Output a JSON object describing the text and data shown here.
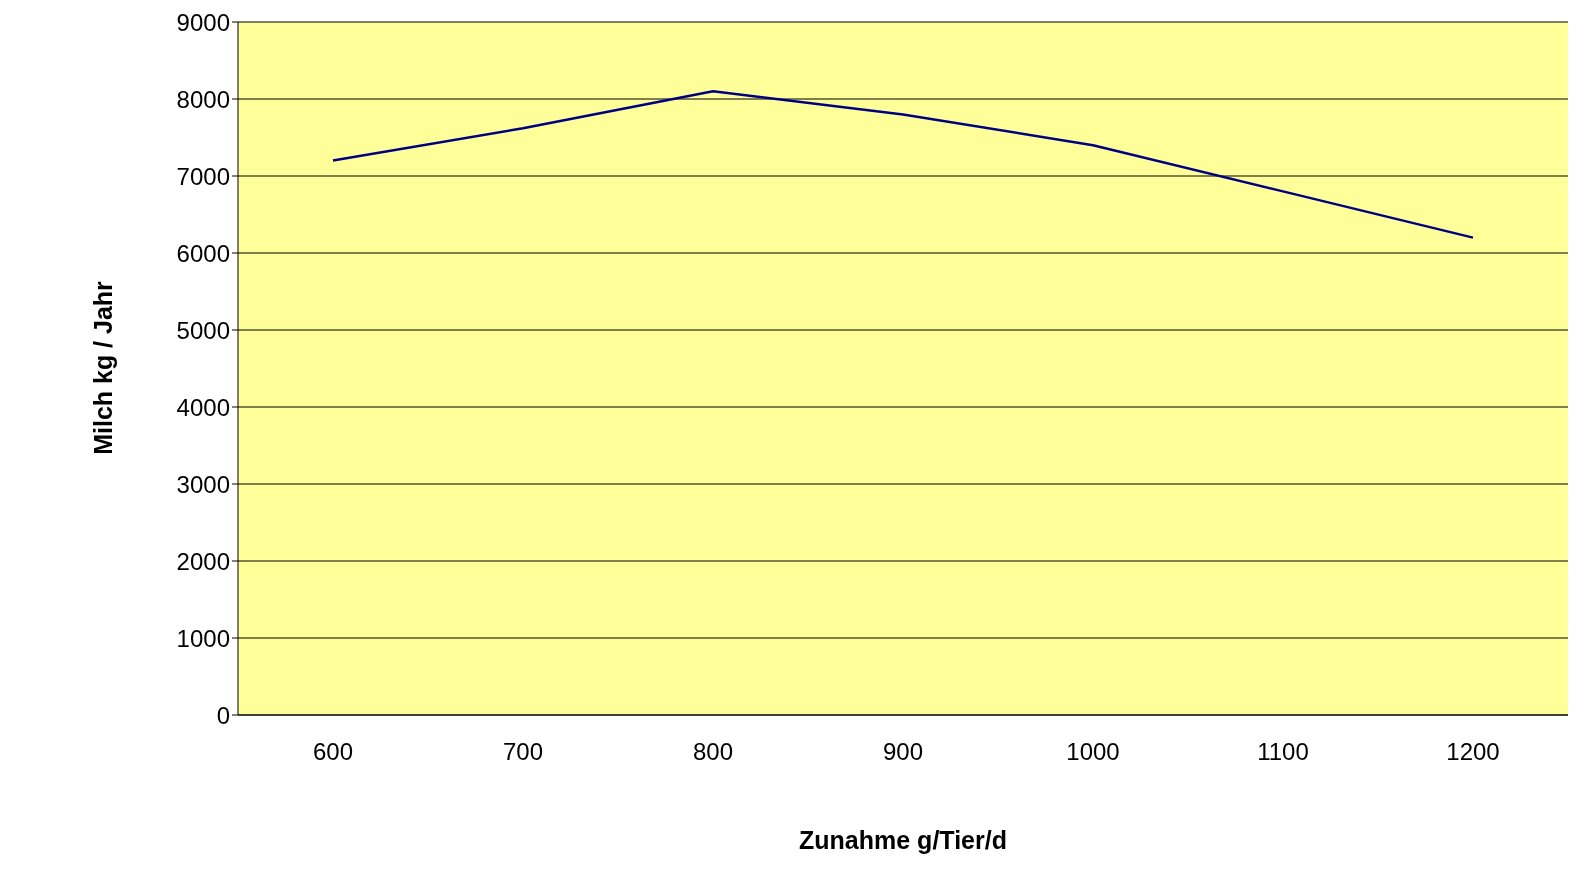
{
  "chart_data": {
    "type": "line",
    "xlabel": "Zunahme g/Tier/d",
    "ylabel": "Milch kg / Jahr",
    "categories": [
      "600",
      "700",
      "800",
      "900",
      "1000",
      "1100",
      "1200"
    ],
    "series": [
      {
        "color": "#000080",
        "values": [
          7200,
          7620,
          8100,
          7800,
          7400,
          6800,
          6200
        ]
      }
    ],
    "ylim": [
      0,
      9000
    ],
    "yticks": [
      0,
      1000,
      2000,
      3000,
      4000,
      5000,
      6000,
      7000,
      8000,
      9000
    ],
    "grid": "y",
    "legend": false,
    "marker": "none",
    "line_style": "solid"
  }
}
